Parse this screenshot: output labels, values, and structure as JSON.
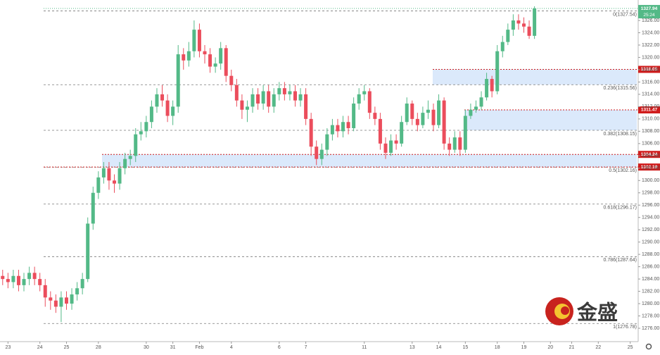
{
  "chart_data": {
    "type": "candlestick",
    "categories": [
      null,
      "23",
      null,
      null,
      null,
      null,
      null,
      "24",
      null,
      null,
      null,
      null,
      "25",
      null,
      null,
      null,
      null,
      null,
      "28",
      null,
      null,
      null,
      null,
      null,
      null,
      null,
      null,
      "30",
      null,
      null,
      null,
      null,
      "31",
      null,
      null,
      null,
      null,
      "Feb",
      null,
      null,
      null,
      null,
      null,
      "4",
      null,
      null,
      null,
      null,
      null,
      null,
      null,
      null,
      "6",
      null,
      null,
      null,
      null,
      "7",
      null,
      null,
      null,
      null,
      null,
      null,
      null,
      null,
      null,
      null,
      "11",
      null,
      null,
      null,
      null,
      null,
      null,
      null,
      null,
      "13",
      null,
      null,
      null,
      null,
      "14",
      null,
      null,
      null,
      null,
      "15",
      null,
      null,
      null,
      null,
      null,
      "18",
      null,
      null,
      null,
      null,
      "19",
      null,
      null,
      null,
      null,
      "20",
      null,
      null,
      null,
      "21",
      null,
      null,
      null,
      null,
      "22",
      null,
      null,
      null,
      null,
      null,
      "25",
      null
    ],
    "open": [
      1284.5,
      1284,
      1283.5,
      1284.5,
      1283,
      1284,
      1285,
      1284,
      1283,
      1281,
      1280.5,
      1279.5,
      1281,
      1280,
      1281.5,
      1282.5,
      1284,
      1293,
      1298,
      1300.5,
      1302,
      1300,
      1299.5,
      1302,
      1303.5,
      1304,
      1307.5,
      1308,
      1309.5,
      1312,
      1314,
      1313,
      1310.5,
      1312,
      1320.5,
      1319.5,
      1321,
      1324.5,
      1321,
      1320.5,
      1318.5,
      1319,
      1321.5,
      1317,
      1315.5,
      1313,
      1311.5,
      1312,
      1314,
      1312.5,
      1314.5,
      1312,
      1314,
      1315,
      1314,
      1314.5,
      1313,
      1314,
      1310,
      1305.5,
      1303.5,
      1305,
      1307.5,
      1309,
      1308,
      1309.5,
      1308.5,
      1312.5,
      1314,
      1314.5,
      1311,
      1310,
      1306,
      1304.5,
      1306.5,
      1306,
      1309.5,
      1312.5,
      1310,
      1309,
      1311,
      1311.5,
      1309,
      1313,
      1306,
      1305,
      1307,
      1305,
      1310.5,
      1311.5,
      1312,
      1313.5,
      1316.5,
      1314.5,
      1321,
      1322.5,
      1324.5,
      1326,
      1325.5,
      1325,
      1323.5,
      null,
      null,
      null,
      null,
      null,
      null,
      null,
      null,
      null,
      null,
      null,
      null,
      null,
      null,
      null,
      null,
      null,
      null,
      null
    ],
    "high": [
      1285.5,
      1285,
      1285.5,
      1285.5,
      1285,
      1286,
      1286,
      1285,
      1284,
      1282,
      1281.5,
      1282,
      1282,
      1282.5,
      1283.5,
      1285,
      1294,
      1299,
      1301.5,
      1303,
      1303,
      1301,
      1303,
      1304.5,
      1305,
      1308.5,
      1309.5,
      1310.5,
      1313,
      1315,
      1315.5,
      1314,
      1313,
      1322,
      1321.5,
      1322.5,
      1326,
      1325.5,
      1322,
      1321.5,
      1320,
      1322.5,
      1322,
      1318,
      1316.5,
      1314,
      1313,
      1315,
      1315,
      1315.5,
      1315.5,
      1315,
      1316,
      1316,
      1315.5,
      1315.5,
      1315,
      1315,
      1311,
      1306.5,
      1306,
      1308.5,
      1310,
      1310,
      1310.5,
      1310.5,
      1313.5,
      1315,
      1315.5,
      1315,
      1312,
      1311,
      1307,
      1307.5,
      1307.5,
      1310.5,
      1313.5,
      1313,
      1311,
      1312,
      1313,
      1312.5,
      1314,
      1313.5,
      1307,
      1308,
      1308,
      1311.5,
      1312.5,
      1313,
      1314.5,
      1317.5,
      1317,
      1322,
      1323.5,
      1325.5,
      1327,
      1327,
      1326.5,
      1326,
      1328.3,
      null,
      null,
      null,
      null,
      null,
      null,
      null,
      null,
      null,
      null,
      null,
      null,
      null,
      null,
      null,
      null,
      null,
      null,
      null
    ],
    "low": [
      1283,
      1282.5,
      1282.5,
      1282,
      1282,
      1283,
      1283,
      1282,
      1279.5,
      1279,
      1278.5,
      1277,
      1279,
      1279,
      1280.5,
      1281.5,
      1283.5,
      1292,
      1297,
      1299.5,
      1298.5,
      1298,
      1298.5,
      1301,
      1302.5,
      1303,
      1306.5,
      1307,
      1308.5,
      1311,
      1312,
      1309.5,
      1309,
      1311,
      1318,
      1318.5,
      1320,
      1320,
      1319,
      1317.5,
      1317.5,
      1318,
      1316,
      1314.5,
      1312,
      1310,
      1309.5,
      1311,
      1311.5,
      1311.5,
      1311,
      1311,
      1313,
      1313,
      1313,
      1312,
      1312,
      1309,
      1304,
      1302.5,
      1302.5,
      1304,
      1306.5,
      1307,
      1307,
      1307.5,
      1308,
      1311.5,
      1313,
      1310,
      1309,
      1305,
      1303.5,
      1304,
      1305,
      1305.5,
      1309,
      1309,
      1308,
      1308.5,
      1310,
      1308,
      1308.5,
      1305,
      1304,
      1304.5,
      1304,
      1304.5,
      1310,
      1311,
      1311.5,
      1313,
      1313.5,
      1314,
      1320,
      1322,
      1323.5,
      1324.5,
      1324,
      1323,
      1323,
      null,
      null,
      null,
      null,
      null,
      null,
      null,
      null,
      null,
      null,
      null,
      null,
      null,
      null,
      null,
      null,
      null,
      null,
      null
    ],
    "close": [
      1284,
      1283.5,
      1284.5,
      1283,
      1284,
      1285,
      1284,
      1283,
      1281,
      1280.5,
      1279.5,
      1281,
      1280,
      1281.5,
      1282.5,
      1284,
      1293,
      1298,
      1300.5,
      1302,
      1300,
      1299.5,
      1302,
      1303.5,
      1304,
      1307.5,
      1308,
      1309.5,
      1312,
      1314,
      1313,
      1310.5,
      1312,
      1320.5,
      1319.5,
      1321,
      1324.5,
      1321,
      1320.5,
      1318.5,
      1319,
      1321.5,
      1317,
      1315.5,
      1313,
      1311.5,
      1312,
      1314,
      1312.5,
      1314.5,
      1312,
      1314,
      1315,
      1314,
      1314.5,
      1313,
      1314,
      1310,
      1305.5,
      1303.5,
      1305,
      1307.5,
      1309,
      1308,
      1309.5,
      1308.5,
      1312.5,
      1314,
      1314.5,
      1311,
      1310,
      1306,
      1304.5,
      1306.5,
      1306,
      1309.5,
      1312.5,
      1310,
      1309,
      1311,
      1311.5,
      1309,
      1313,
      1306,
      1305,
      1307,
      1305,
      1310.5,
      1311.5,
      1312,
      1313.5,
      1316.5,
      1314.5,
      1321,
      1322.5,
      1324.5,
      1326,
      1325.5,
      1325,
      1323.5,
      1327.94,
      null,
      null,
      null,
      null,
      null,
      null,
      null,
      null,
      null,
      null,
      null,
      null,
      null,
      null,
      null,
      null,
      null,
      null,
      null
    ],
    "up_color": "#53b987",
    "down_color": "#eb4d5c",
    "ylim": [
      1273.83,
      1329.32
    ],
    "yticks": [
      {
        "value": 1276,
        "label": "1276.00"
      },
      {
        "value": 1278,
        "label": "1278.00"
      },
      {
        "value": 1280,
        "label": "1280.00"
      },
      {
        "value": 1282,
        "label": "1282.00"
      },
      {
        "value": 1284,
        "label": "1284.00"
      },
      {
        "value": 1286,
        "label": "1286.00"
      },
      {
        "value": 1288,
        "label": "1288.00"
      },
      {
        "value": 1290,
        "label": "1290.00"
      },
      {
        "value": 1292,
        "label": "1292.00"
      },
      {
        "value": 1294,
        "label": "1294.00"
      },
      {
        "value": 1296,
        "label": "1296.00"
      },
      {
        "value": 1298,
        "label": "1298.00"
      },
      {
        "value": 1300,
        "label": "1300.00"
      },
      {
        "value": 1302,
        "label": "1302.00"
      },
      {
        "value": 1304,
        "label": "1304.00"
      },
      {
        "value": 1306,
        "label": "1306.00"
      },
      {
        "value": 1308,
        "label": "1308.00"
      },
      {
        "value": 1310,
        "label": "1310.00"
      },
      {
        "value": 1312,
        "label": "1312.00"
      },
      {
        "value": 1314,
        "label": "1314.00"
      },
      {
        "value": 1316,
        "label": "1316.00"
      },
      {
        "value": 1318,
        "label": "1318.00"
      },
      {
        "value": 1320,
        "label": "1320.00"
      },
      {
        "value": 1322,
        "label": "1322.00"
      },
      {
        "value": 1324,
        "label": "1324.00"
      },
      {
        "value": 1326,
        "label": "1326.00"
      }
    ],
    "fib_levels": [
      {
        "label": "0(1327.54)",
        "value": 1327.54
      },
      {
        "label": "0.236(1315.56)",
        "value": 1315.56
      },
      {
        "label": "0.382(1308.15)",
        "value": 1308.15
      },
      {
        "label": "0.5(1302.16)",
        "value": 1302.16
      },
      {
        "label": "0.618(1296.17)",
        "value": 1296.17
      },
      {
        "label": "0.786(1287.64)",
        "value": 1287.64
      },
      {
        "label": "1(1276.78)",
        "value": 1276.78
      }
    ],
    "zones": [
      {
        "low": 1315.56,
        "high": 1318.05
      },
      {
        "low": 1308.15,
        "high": 1311.47
      },
      {
        "low": 1302.19,
        "high": 1304.24
      }
    ],
    "levels": [
      1318.05,
      1311.47,
      1304.24,
      1302.19
    ],
    "last_price": 1327.94,
    "countdown": "25:24",
    "logo": "金盛"
  }
}
